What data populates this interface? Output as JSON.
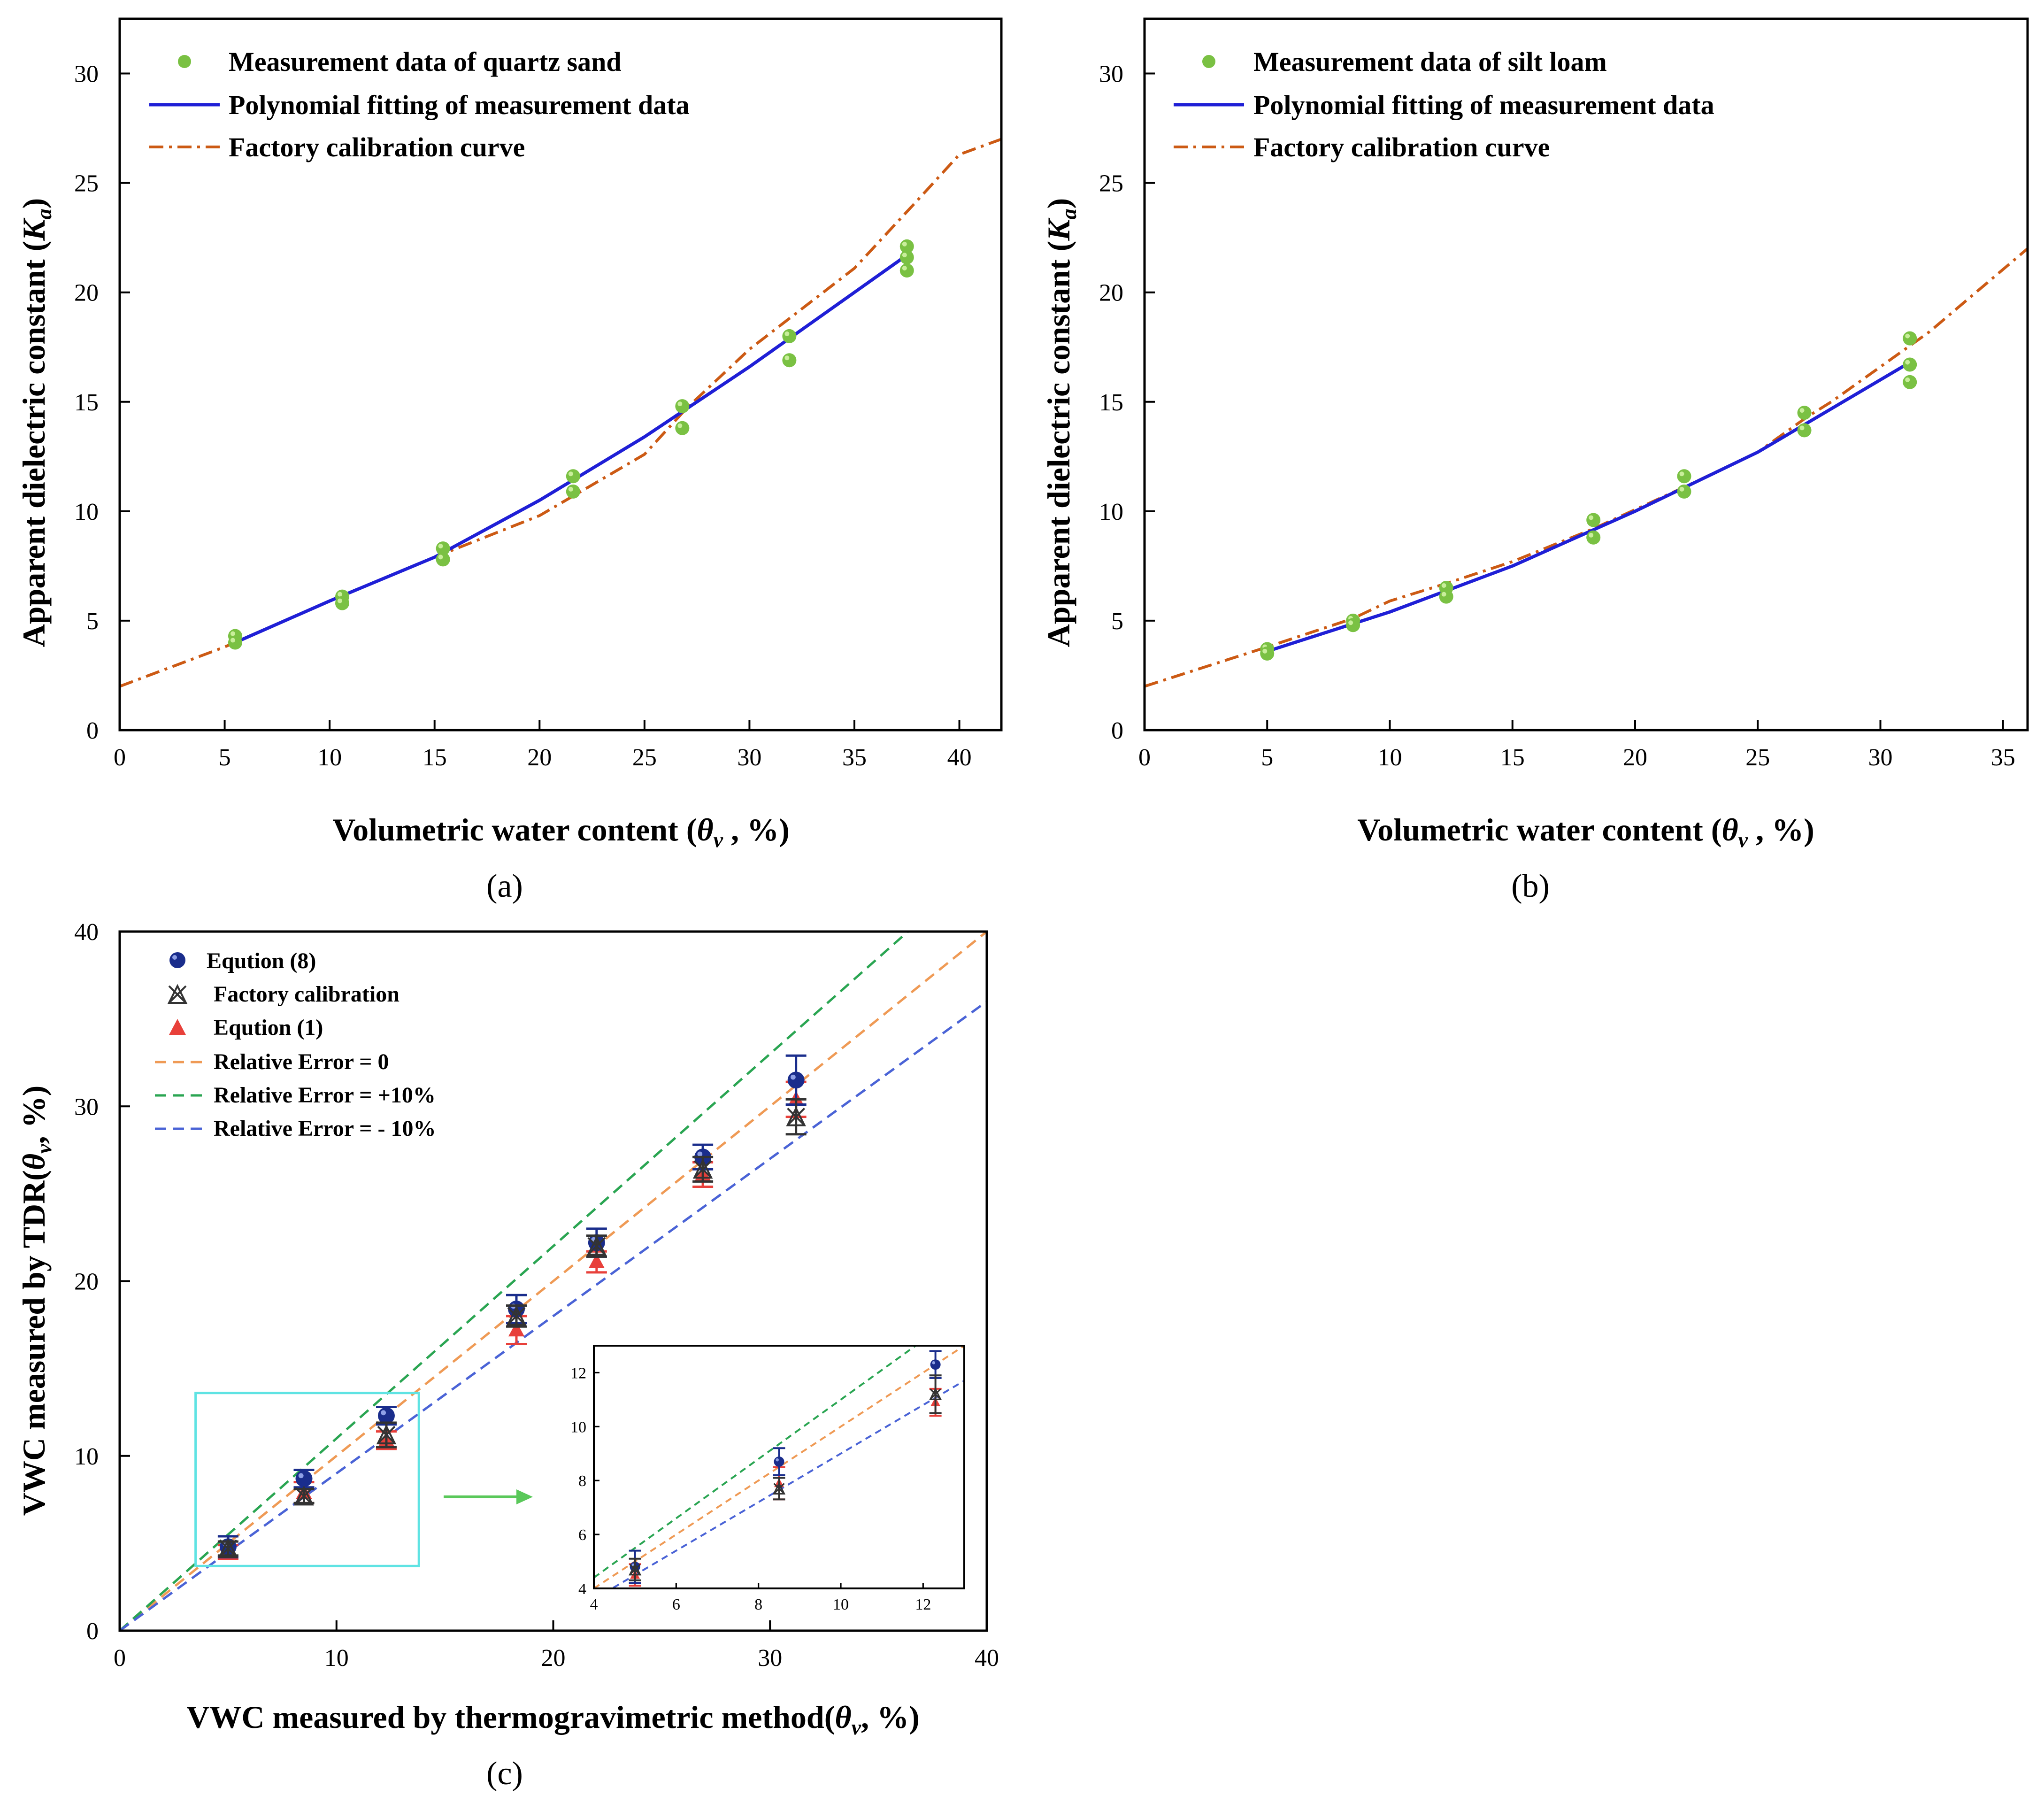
{
  "chart_data": [
    {
      "panel": "a",
      "type": "scatter",
      "panel_label": "(a)",
      "xlabel": {
        "pre": "Volumetric water content (",
        "sym": "θ",
        "sub": "v",
        "post": " , %)"
      },
      "ylabel": {
        "pre": "Apparent dielectric constant (",
        "sym": "K",
        "sub": "a",
        "post": ")"
      },
      "xlim": [
        0,
        42
      ],
      "ylim": [
        0,
        32.5
      ],
      "xticks": [
        0,
        5,
        10,
        15,
        20,
        25,
        30,
        35,
        40
      ],
      "yticks": [
        0,
        5,
        10,
        15,
        20,
        25,
        30
      ],
      "colors": {
        "points": "#7ac143",
        "fit": "#1f1fd6",
        "factory": "#cc5a14"
      },
      "legend": [
        "Measurement data of quartz sand",
        "Polynomial fitting of measurement data",
        "Factory calibration curve"
      ],
      "series": [
        {
          "name": "Measurement data of quartz sand",
          "kind": "points",
          "x": [
            5.5,
            5.5,
            10.6,
            10.6,
            15.4,
            15.4,
            21.6,
            21.6,
            26.8,
            26.8,
            31.9,
            31.9,
            37.5,
            37.5,
            37.5
          ],
          "y": [
            4.3,
            4.0,
            6.1,
            5.8,
            8.3,
            7.8,
            11.6,
            10.9,
            14.8,
            13.8,
            18.0,
            16.9,
            22.1,
            21.6,
            21.0
          ]
        },
        {
          "name": "Polynomial fitting of measurement data",
          "kind": "line",
          "x": [
            5.5,
            10,
            15,
            20,
            25,
            30,
            35,
            37.5
          ],
          "y": [
            4.0,
            5.9,
            7.9,
            10.5,
            13.4,
            16.6,
            20.0,
            21.7
          ]
        },
        {
          "name": "Factory calibration curve",
          "kind": "dashdot",
          "x": [
            0,
            5,
            10,
            15,
            20,
            25,
            27,
            30,
            35,
            38,
            40,
            42
          ],
          "y": [
            2.0,
            3.8,
            5.9,
            7.9,
            9.8,
            12.6,
            14.7,
            17.4,
            21.1,
            24.2,
            26.3,
            27.0
          ]
        }
      ]
    },
    {
      "panel": "b",
      "type": "scatter",
      "panel_label": "(b)",
      "xlabel": {
        "pre": "Volumetric water content (",
        "sym": "θ",
        "sub": "v",
        "post": " , %)"
      },
      "ylabel": {
        "pre": "Apparent dielectric constant (",
        "sym": "K",
        "sub": "a",
        "post": ")"
      },
      "xlim": [
        0,
        36
      ],
      "ylim": [
        0,
        32.5
      ],
      "xticks": [
        0,
        5,
        10,
        15,
        20,
        25,
        30,
        35
      ],
      "yticks": [
        0,
        5,
        10,
        15,
        20,
        25,
        30
      ],
      "colors": {
        "points": "#7ac143",
        "fit": "#1f1fd6",
        "factory": "#cc5a14"
      },
      "legend": [
        "Measurement data of silt loam",
        "Polynomial fitting of measurement data",
        "Factory calibration curve"
      ],
      "series": [
        {
          "name": "Measurement data of silt loam",
          "kind": "points",
          "x": [
            5.0,
            5.0,
            8.5,
            8.5,
            12.3,
            12.3,
            18.3,
            18.3,
            22.0,
            22.0,
            26.9,
            26.9,
            31.2,
            31.2,
            31.2
          ],
          "y": [
            3.7,
            3.5,
            5.0,
            4.8,
            6.5,
            6.1,
            9.6,
            8.8,
            11.6,
            10.9,
            14.5,
            13.7,
            17.9,
            16.7,
            15.9
          ]
        },
        {
          "name": "Polynomial fitting of measurement data",
          "kind": "line",
          "x": [
            5.0,
            10,
            15,
            20,
            25,
            31.2
          ],
          "y": [
            3.6,
            5.4,
            7.5,
            10.0,
            12.7,
            16.8
          ]
        },
        {
          "name": "Factory calibration curve",
          "kind": "dashdot",
          "x": [
            0,
            5,
            8.5,
            10,
            12.3,
            15,
            18.3,
            22,
            25,
            27,
            28,
            30,
            32,
            36
          ],
          "y": [
            2.0,
            3.8,
            5.1,
            5.9,
            6.7,
            7.7,
            9.2,
            11.1,
            12.7,
            14.3,
            15.0,
            16.6,
            18.2,
            22.0
          ]
        }
      ]
    },
    {
      "panel": "c",
      "type": "scatter",
      "panel_label": "(c)",
      "xlabel": {
        "pre": "VWC measured by thermogravimetric method(",
        "sym": "θ",
        "sub": "v",
        "post": ", %)"
      },
      "ylabel": {
        "pre": "VWC measured by TDR(",
        "sym": "θ",
        "sub": "v",
        "post": ", %)"
      },
      "xlim": [
        0,
        40
      ],
      "ylim": [
        0,
        40
      ],
      "xticks": [
        0,
        10,
        20,
        30,
        40
      ],
      "yticks": [
        0,
        10,
        20,
        30,
        40
      ],
      "colors": {
        "eq8": "#1a2d8c",
        "factory": "#333333",
        "eq1": "#e8403a",
        "re0": "#ef9a55",
        "re_plus10": "#2aa552",
        "re_minus10": "#4a63d6",
        "zoom_box": "#5fe3e3",
        "arrow": "#5ac85a"
      },
      "legend": [
        "Eqution (8)",
        "Factory calibration",
        "Eqution (1)",
        "Relative Error = 0",
        "Relative Error = +10%",
        "Relative Error = - 10%"
      ],
      "x": [
        5.0,
        8.5,
        12.3,
        18.3,
        22.0,
        26.9,
        31.2
      ],
      "series": [
        {
          "name": "Eqution (8)",
          "kind": "circle",
          "y": [
            4.8,
            8.7,
            12.3,
            18.4,
            22.2,
            27.1,
            31.5
          ],
          "err": [
            0.6,
            0.5,
            0.5,
            0.8,
            0.8,
            0.7,
            1.4
          ]
        },
        {
          "name": "Factory calibration",
          "kind": "cross",
          "y": [
            4.7,
            7.7,
            11.2,
            18.0,
            22.0,
            26.4,
            29.4
          ],
          "err": [
            0.4,
            0.4,
            0.7,
            0.6,
            0.6,
            0.7,
            1.0
          ]
        },
        {
          "name": "Eqution (1)",
          "kind": "triangle",
          "y": [
            4.5,
            7.9,
            10.9,
            17.2,
            21.1,
            26.1,
            30.4
          ],
          "err": [
            0.4,
            0.6,
            0.5,
            0.8,
            0.6,
            0.7,
            1.0
          ]
        },
        {
          "name": "Relative Error = 0",
          "kind": "ref",
          "slope": 1.0
        },
        {
          "name": "Relative Error = +10%",
          "kind": "ref",
          "slope": 1.1
        },
        {
          "name": "Relative Error = - 10%",
          "kind": "ref",
          "slope": 0.9
        }
      ],
      "inset": {
        "xlim": [
          4,
          13
        ],
        "ylim": [
          4,
          13
        ],
        "xticks": [
          4,
          6,
          8,
          10,
          12
        ],
        "yticks": [
          4,
          6,
          8,
          10,
          12
        ],
        "zoom_region": {
          "x": [
            3.5,
            13.8
          ],
          "y": [
            3.7,
            13.6
          ]
        }
      }
    }
  ]
}
